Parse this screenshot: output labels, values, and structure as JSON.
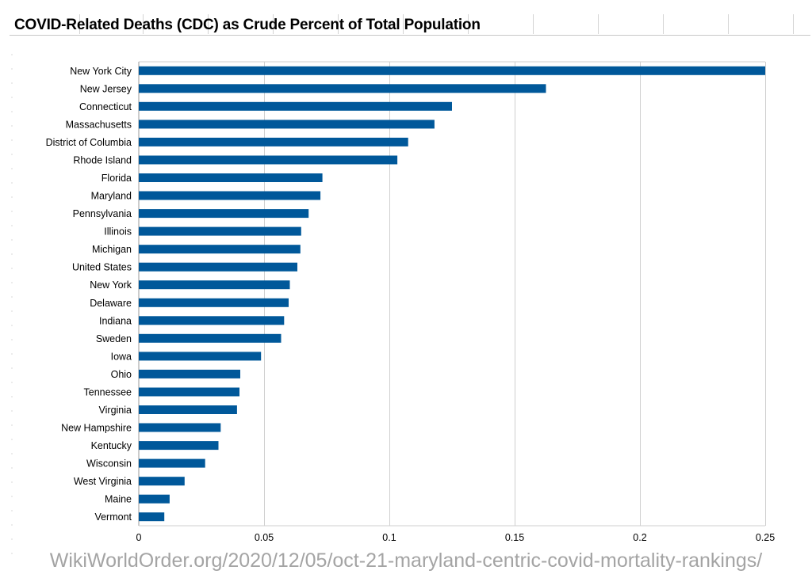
{
  "chart_data": {
    "type": "bar",
    "orientation": "horizontal",
    "title": "COVID-Related Deaths (CDC) as Crude Percent of Total Population",
    "xlabel": "",
    "ylabel": "",
    "xlim": [
      0,
      0.25
    ],
    "ticks": [
      "0",
      "0.05",
      "0.1",
      "0.15",
      "0.2",
      "0.25"
    ],
    "tick_values": [
      0,
      0.05,
      0.1,
      0.15,
      0.2,
      0.25
    ],
    "grid": true,
    "legend": "none",
    "bar_color": "#00589a",
    "categories": [
      "New York City",
      "New Jersey",
      "Connecticut",
      "Massachusetts",
      "District of Columbia",
      "Rhode Island",
      "Florida",
      "Maryland",
      "Pennsylvania",
      "Illinois",
      "Michigan",
      "United States",
      "New York",
      "Delaware",
      "Indiana",
      "Sweden",
      "Iowa",
      "Ohio",
      "Tennessee",
      "Virginia",
      "New Hampshire",
      "Kentucky",
      "Wisconsin",
      "West Virginia",
      "Maine",
      "Vermont"
    ],
    "values": [
      0.25,
      0.1625,
      0.125,
      0.118,
      0.1075,
      0.1032,
      0.0733,
      0.0725,
      0.0678,
      0.0648,
      0.0645,
      0.0633,
      0.0603,
      0.0598,
      0.058,
      0.0568,
      0.0488,
      0.0405,
      0.0402,
      0.0392,
      0.0327,
      0.0318,
      0.0265,
      0.0183,
      0.0123,
      0.0102
    ]
  },
  "source_note": "WikiWorldOrder.org/2020/12/05/oct-21-maryland-centric-covid-mortality-rankings/"
}
